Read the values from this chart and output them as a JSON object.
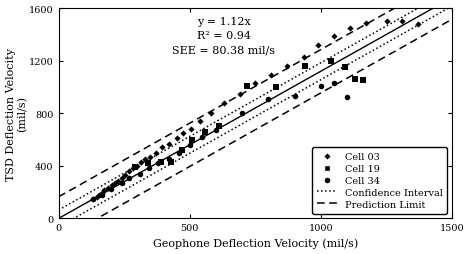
{
  "xlabel": "Geophone Deflection Velocity (mil/s)",
  "ylabel": "TSD Deflection Velocity\n(mil/s)",
  "xlim": [
    0,
    1500
  ],
  "ylim": [
    0,
    1600
  ],
  "xticks": [
    0,
    500,
    1000,
    1500
  ],
  "yticks": [
    0,
    400,
    800,
    1200,
    1600
  ],
  "equation_text": "y = 1.12x\nR² = 0.94\nSEE = 80.38 mil/s",
  "slope": 1.12,
  "SEE": 80.38,
  "ci_factor": 0.8,
  "pl_factor": 2.05,
  "cell03_x": [
    130,
    145,
    155,
    165,
    175,
    190,
    205,
    215,
    225,
    240,
    255,
    270,
    285,
    300,
    315,
    330,
    350,
    370,
    395,
    420,
    450,
    475,
    505,
    540,
    580,
    630,
    690,
    750,
    810,
    870,
    935,
    990,
    1050,
    1110,
    1170,
    1250,
    1310,
    1370
  ],
  "cell03_y": [
    150,
    165,
    180,
    195,
    215,
    230,
    255,
    270,
    285,
    310,
    330,
    360,
    380,
    400,
    430,
    450,
    470,
    500,
    540,
    570,
    610,
    650,
    680,
    740,
    800,
    880,
    950,
    1030,
    1090,
    1160,
    1230,
    1320,
    1390,
    1450,
    1490,
    1500,
    1500,
    1480
  ],
  "cell19_x": [
    290,
    340,
    390,
    430,
    470,
    510,
    560,
    610,
    720,
    830,
    940,
    1040,
    1090,
    1130,
    1160
  ],
  "cell19_y": [
    390,
    420,
    430,
    430,
    520,
    600,
    660,
    700,
    1010,
    1000,
    1160,
    1200,
    1150,
    1060,
    1050
  ],
  "cell34_x": [
    130,
    165,
    200,
    240,
    270,
    310,
    345,
    380,
    420,
    460,
    500,
    545,
    600,
    700,
    800,
    900,
    1000,
    1050,
    1100
  ],
  "cell34_y": [
    145,
    180,
    225,
    270,
    305,
    340,
    385,
    425,
    455,
    495,
    555,
    620,
    670,
    800,
    910,
    935,
    1010,
    1030,
    920
  ],
  "fontsize_labels": 8,
  "fontsize_annot": 8,
  "fontsize_ticks": 7,
  "legend_fontsize": 7
}
